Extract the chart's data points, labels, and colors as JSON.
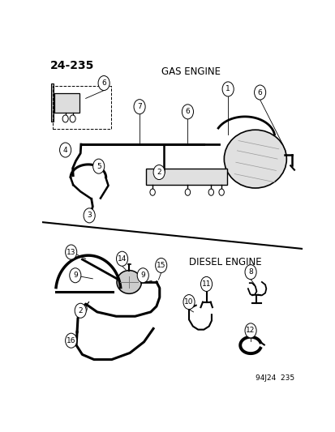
{
  "page_number": "24-235",
  "footer": "94J24  235",
  "gas_engine_label": "GAS ENGINE",
  "diesel_engine_label": "DIESEL ENGINE",
  "background_color": "#ffffff",
  "line_color": "#000000",
  "text_color": "#000000"
}
